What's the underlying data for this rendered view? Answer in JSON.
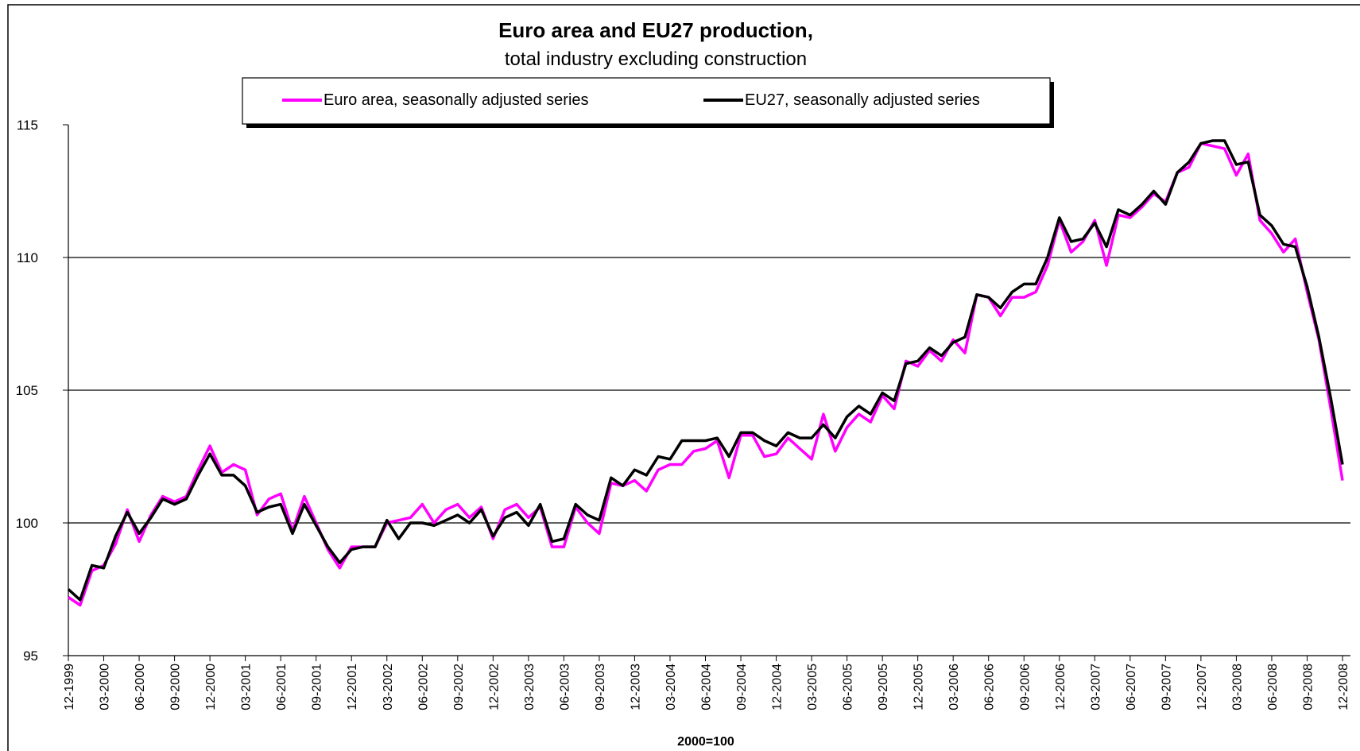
{
  "chart_data": {
    "type": "line",
    "title": "Euro area and EU27 production,",
    "subtitle": "total industry excluding construction",
    "annotation": "2000=100",
    "categories": [
      "12-1999",
      null,
      null,
      "03-2000",
      null,
      null,
      "06-2000",
      null,
      null,
      "09-2000",
      null,
      null,
      "12-2000",
      null,
      null,
      "03-2001",
      null,
      null,
      "06-2001",
      null,
      null,
      "09-2001",
      null,
      null,
      "12-2001",
      null,
      null,
      "03-2002",
      null,
      null,
      "06-2002",
      null,
      null,
      "09-2002",
      null,
      null,
      "12-2002",
      null,
      null,
      "03-2003",
      null,
      null,
      "06-2003",
      null,
      null,
      "09-2003",
      null,
      null,
      "12-2003",
      null,
      null,
      "03-2004",
      null,
      null,
      "06-2004",
      null,
      null,
      "09-2004",
      null,
      null,
      "12-2004",
      null,
      null,
      "03-2005",
      null,
      null,
      "06-2005",
      null,
      null,
      "09-2005",
      null,
      null,
      "12-2005",
      null,
      null,
      "03-2006",
      null,
      null,
      "06-2006",
      null,
      null,
      "09-2006",
      null,
      null,
      "12-2006",
      null,
      null,
      "03-2007",
      null,
      null,
      "06-2007",
      null,
      null,
      "09-2007",
      null,
      null,
      "12-2007",
      null,
      null,
      "03-2008",
      null,
      null,
      "06-2008",
      null,
      null,
      "09-2008",
      null,
      null,
      "12-2008"
    ],
    "series": [
      {
        "name": "Euro area, seasonally adjusted series",
        "color": "#ff00ff",
        "values": [
          97.2,
          96.9,
          98.2,
          98.4,
          99.2,
          100.5,
          99.3,
          100.3,
          101.0,
          100.8,
          101.0,
          102.0,
          102.9,
          101.9,
          102.2,
          102.0,
          100.3,
          100.9,
          101.1,
          99.7,
          101.0,
          100.0,
          99.0,
          98.3,
          99.1,
          99.1,
          99.1,
          100.0,
          100.1,
          100.2,
          100.7,
          100.0,
          100.5,
          100.7,
          100.2,
          100.6,
          99.4,
          100.5,
          100.7,
          100.2,
          100.6,
          99.1,
          99.1,
          100.6,
          100.0,
          99.6,
          101.5,
          101.4,
          101.6,
          101.2,
          102.0,
          102.2,
          102.2,
          102.7,
          102.8,
          103.1,
          101.7,
          103.3,
          103.3,
          102.5,
          102.6,
          103.2,
          102.8,
          102.4,
          104.1,
          102.7,
          103.6,
          104.1,
          103.8,
          104.8,
          104.3,
          106.1,
          105.9,
          106.5,
          106.1,
          106.9,
          106.4,
          108.6,
          108.5,
          107.8,
          108.5,
          108.5,
          108.7,
          109.7,
          111.4,
          110.2,
          110.6,
          111.4,
          109.7,
          111.6,
          111.5,
          111.9,
          112.4,
          112.1,
          113.2,
          113.4,
          114.3,
          114.2,
          114.1,
          113.1,
          113.9,
          111.4,
          110.9,
          110.2,
          110.7,
          108.7,
          106.9,
          104.3,
          101.6
        ]
      },
      {
        "name": "EU27, seasonally adjusted series",
        "color": "#000000",
        "values": [
          97.5,
          97.1,
          98.4,
          98.3,
          99.5,
          100.4,
          99.6,
          100.2,
          100.9,
          100.7,
          100.9,
          101.8,
          102.6,
          101.8,
          101.8,
          101.4,
          100.4,
          100.6,
          100.7,
          99.6,
          100.7,
          99.9,
          99.1,
          98.5,
          99.0,
          99.1,
          99.1,
          100.1,
          99.4,
          100.0,
          100.0,
          99.9,
          100.1,
          100.3,
          100.0,
          100.5,
          99.5,
          100.2,
          100.4,
          99.9,
          100.7,
          99.3,
          99.4,
          100.7,
          100.3,
          100.1,
          101.7,
          101.4,
          102.0,
          101.8,
          102.5,
          102.4,
          103.1,
          103.1,
          103.1,
          103.2,
          102.5,
          103.4,
          103.4,
          103.1,
          102.9,
          103.4,
          103.2,
          103.2,
          103.7,
          103.2,
          104.0,
          104.4,
          104.1,
          104.9,
          104.6,
          106.0,
          106.1,
          106.6,
          106.3,
          106.8,
          107.0,
          108.6,
          108.5,
          108.1,
          108.7,
          109.0,
          109.0,
          110.0,
          111.5,
          110.6,
          110.7,
          111.3,
          110.4,
          111.8,
          111.6,
          112.0,
          112.5,
          112.0,
          113.2,
          113.6,
          114.3,
          114.4,
          114.4,
          113.5,
          113.6,
          111.6,
          111.2,
          110.5,
          110.4,
          108.9,
          107.0,
          104.7,
          102.2
        ]
      }
    ],
    "ylim": [
      95,
      115
    ],
    "yticks": [
      95,
      100,
      105,
      110,
      115
    ],
    "grid": true
  }
}
